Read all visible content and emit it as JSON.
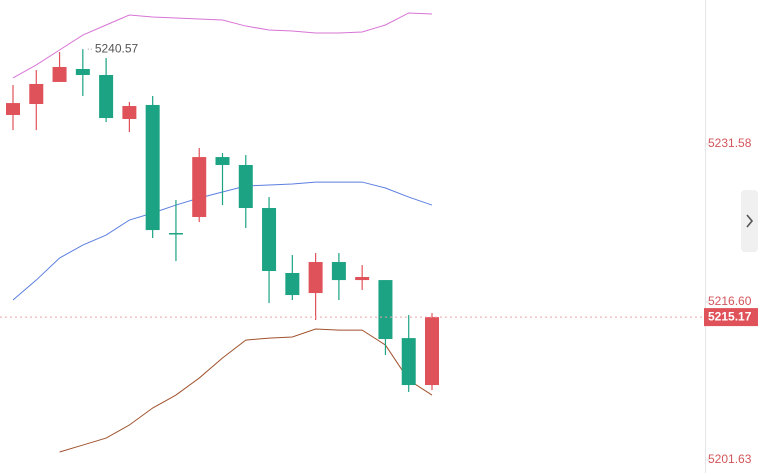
{
  "chart_data": {
    "type": "candlestick",
    "open": [
      5234.33,
      5235.37,
      5237.46,
      5238.69,
      5238.12,
      5233.95,
      5235.28,
      5223.14,
      5224.66,
      5230.34,
      5229.59,
      5225.51,
      5219.35,
      5217.45,
      5220.39,
      5218.68,
      5218.68,
      5213.18,
      5208.73
    ],
    "high": [
      5237.17,
      5238.59,
      5240.3,
      5240.57,
      5239.73,
      5235.56,
      5236.13,
      5226.27,
      5231.2,
      5230.72,
      5230.53,
      5226.55,
      5221.05,
      5221.24,
      5221.24,
      5220.1,
      5218.68,
      5215.36,
      5215.55
    ],
    "low": [
      5232.9,
      5232.9,
      5237.46,
      5236.13,
      5233.66,
      5232.71,
      5222.67,
      5220.48,
      5224.18,
      5225.79,
      5223.61,
      5216.5,
      5216.79,
      5214.89,
      5216.79,
      5217.74,
      5211.57,
      5208.07,
      5208.25
    ],
    "close": [
      5235.46,
      5237.27,
      5238.88,
      5238.12,
      5234.04,
      5235.18,
      5223.42,
      5223.05,
      5230.34,
      5229.59,
      5225.51,
      5219.54,
      5217.26,
      5220.39,
      5218.68,
      5218.97,
      5213.09,
      5208.73,
      5215.17
    ],
    "up_color": "#e0525a",
    "down_color": "#1ba383",
    "lines": [
      {
        "color": "#d874d6",
        "values": [
          5237.84,
          5239.07,
          5240.49,
          5241.91,
          5242.86,
          5243.81,
          5243.62,
          5243.52,
          5243.43,
          5243.33,
          5242.76,
          5242.39,
          5242.29,
          5242.1,
          5242.1,
          5242.2,
          5242.86,
          5244.0,
          5243.9
        ]
      },
      {
        "color": "#5b7fe0",
        "values": [
          5216.79,
          5218.68,
          5220.77,
          5222.0,
          5222.95,
          5224.37,
          5225.04,
          5225.79,
          5226.46,
          5227.03,
          5227.6,
          5227.69,
          5227.79,
          5227.97,
          5227.97,
          5227.97,
          5227.41,
          5226.55,
          5225.79
        ]
      },
      {
        "color": "#a0522d",
        "values": [
          null,
          null,
          5202.38,
          5203.04,
          5203.7,
          5204.94,
          5206.55,
          5207.78,
          5209.39,
          5211.29,
          5212.99,
          5213.18,
          5213.28,
          5214.04,
          5213.94,
          5213.94,
          5212.52,
          5209.2,
          5207.78
        ]
      }
    ],
    "high_annotation": 5240.57,
    "last_price": 5215.17,
    "ylim": [
      5200.39,
      5245.23
    ],
    "yticks": [
      5231.58,
      {
        "value": 5216.6,
        "label": "5216.60"
      },
      5201.63
    ]
  }
}
